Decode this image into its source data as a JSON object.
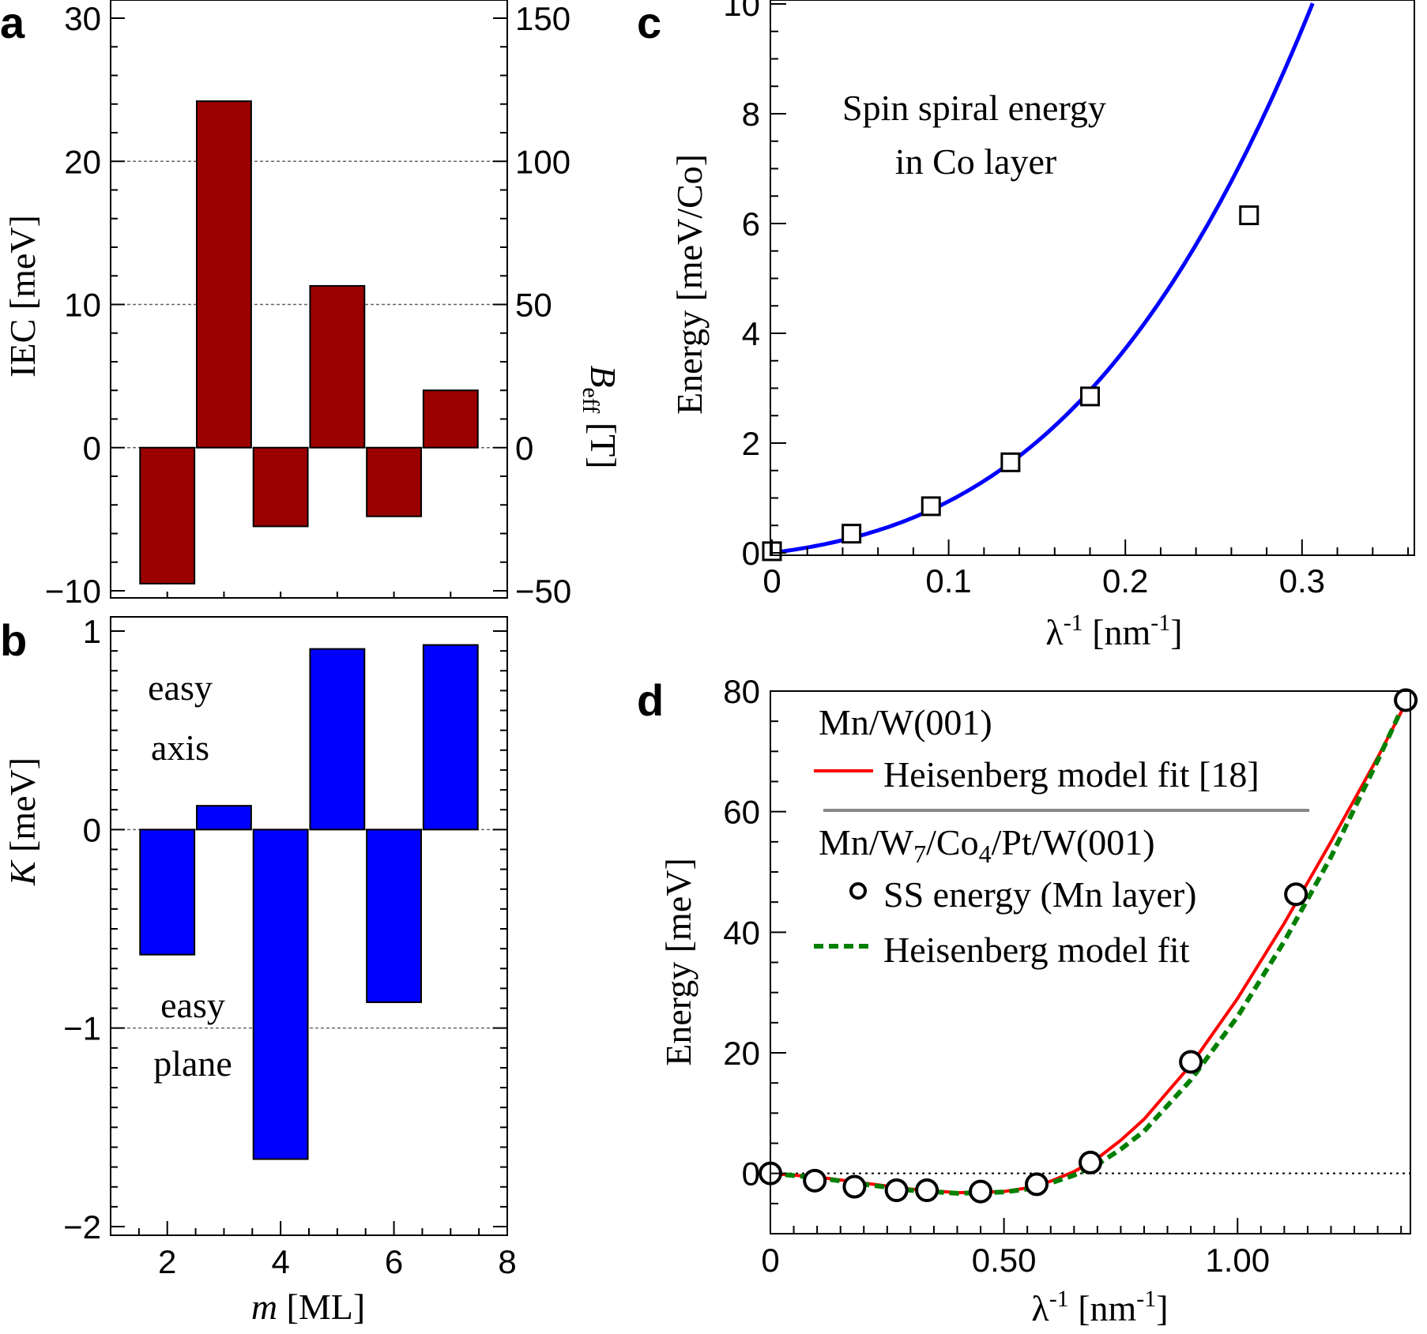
{
  "chart_data": [
    {
      "panel": "a",
      "type": "bar",
      "xlabel": "",
      "ylabel": "IEC [meV]",
      "y2label": "B_eff [T]",
      "x": [
        2,
        3,
        4,
        5,
        6,
        7
      ],
      "values": [
        -9.5,
        24.2,
        -5.5,
        11.3,
        -4.8,
        4.0
      ],
      "xlim": [
        1,
        8
      ],
      "ylim": [
        -10,
        30
      ],
      "y2lim": [
        -50,
        150
      ],
      "yticks": [
        "−10",
        "0",
        "10",
        "20",
        "30"
      ],
      "y2ticks": [
        "−50",
        "0",
        "50",
        "100",
        "150"
      ],
      "color": "#9b0000",
      "grid": "dashed at y = 0, 10, 20"
    },
    {
      "panel": "b",
      "type": "bar",
      "xlabel": "m [ML]",
      "ylabel": "K [meV]",
      "x": [
        2,
        3,
        4,
        5,
        6,
        7
      ],
      "values": [
        -0.63,
        0.12,
        -1.66,
        0.91,
        -0.87,
        0.93
      ],
      "xlim": [
        1,
        8
      ],
      "ylim": [
        -2,
        1.1
      ],
      "xticks": [
        "2",
        "4",
        "6",
        "8"
      ],
      "yticks": [
        "−2",
        "−1",
        "0",
        "1"
      ],
      "color": "#0000ff",
      "grid": "dashed at y = 0, -1",
      "annotations": [
        {
          "lines": [
            "easy",
            "axis"
          ]
        },
        {
          "lines": [
            "easy",
            "plane"
          ]
        }
      ]
    },
    {
      "panel": "c",
      "type": "line",
      "xlabel": "λ-1 [nm-1]",
      "ylabel": "Energy [meV/Co]",
      "xlim": [
        0,
        0.36
      ],
      "ylim": [
        0,
        10
      ],
      "xticks": [
        "0",
        "0.1",
        "0.2",
        "0.3"
      ],
      "yticks": [
        "0",
        "2",
        "4",
        "6",
        "8",
        "10"
      ],
      "annotation": [
        "Spin spiral energy",
        "in Co layer"
      ],
      "series": [
        {
          "role": "points",
          "marker": "square",
          "x": [
            0.0,
            0.045,
            0.09,
            0.135,
            0.18,
            0.27
          ],
          "y": [
            0.03,
            0.35,
            0.85,
            1.65,
            2.85,
            6.15
          ]
        },
        {
          "role": "curve",
          "color": "#0000ff",
          "function": "E(q) = 4.2q + 32q² + 200q³"
        }
      ]
    },
    {
      "panel": "d",
      "type": "line",
      "xlabel": "λ-1 [nm-1]",
      "ylabel": "Energy [meV]",
      "xlim": [
        0,
        1.37
      ],
      "ylim": [
        -10,
        80
      ],
      "xticks": [
        "0",
        "0.50",
        "1.00"
      ],
      "yticks": [
        "0",
        "20",
        "40",
        "60",
        "80"
      ],
      "legend_position": "top-left",
      "legend": {
        "group1_title": "Mn/W(001)",
        "red_fit": "Heisenberg model fit [18]",
        "group2_title_parts": [
          "Mn/W",
          "7",
          "/Co",
          "4",
          "/Pt/W(001)"
        ],
        "points": "SS energy (Mn layer)",
        "green_fit": "Heisenberg model fit"
      },
      "series": [
        {
          "role": "ss-energy",
          "marker": "circle",
          "x": [
            0.0,
            0.095,
            0.18,
            0.27,
            0.335,
            0.45,
            0.57,
            0.685,
            0.9,
            1.125,
            1.36
          ],
          "y": [
            0.0,
            -1.2,
            -2.2,
            -2.8,
            -2.8,
            -3.0,
            -1.8,
            1.8,
            18.5,
            46.3,
            78.5
          ]
        },
        {
          "role": "red-fit",
          "color": "#ff0000",
          "x": [
            0,
            0.1,
            0.2,
            0.3,
            0.4,
            0.5,
            0.55,
            0.6,
            0.65,
            0.7,
            0.75,
            0.8,
            0.9,
            1.0,
            1.1,
            1.2,
            1.3,
            1.36
          ],
          "y": [
            0,
            -0.6,
            -1.6,
            -2.6,
            -3.2,
            -3.0,
            -2.4,
            -1.3,
            0.3,
            2.5,
            5.5,
            9.0,
            18.0,
            29.0,
            41.5,
            55.0,
            69.0,
            78.0
          ]
        },
        {
          "role": "green-fit",
          "color": "#008000",
          "x": [
            0,
            0.1,
            0.2,
            0.3,
            0.4,
            0.5,
            0.55,
            0.6,
            0.65,
            0.7,
            0.75,
            0.8,
            0.9,
            1.0,
            1.1,
            1.2,
            1.3,
            1.36
          ],
          "y": [
            0,
            -0.7,
            -1.8,
            -2.8,
            -3.3,
            -3.1,
            -2.6,
            -1.6,
            -0.3,
            1.5,
            4.0,
            7.0,
            15.5,
            26.0,
            38.5,
            52.5,
            68.5,
            78.5
          ]
        }
      ],
      "reference_line": {
        "y": 0,
        "style": "dotted"
      }
    }
  ],
  "panel_labels": [
    "a",
    "b",
    "c",
    "d"
  ]
}
